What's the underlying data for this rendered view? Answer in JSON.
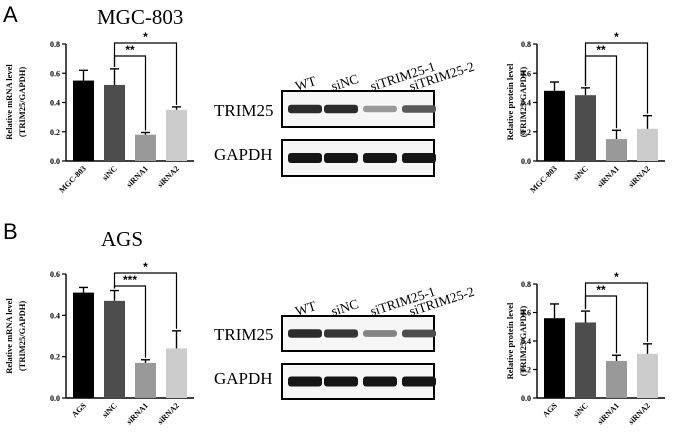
{
  "panels": [
    {
      "letter": "A",
      "cell_line": "MGC-803"
    },
    {
      "letter": "B",
      "cell_line": "AGS"
    }
  ],
  "blots": [
    {
      "lanes": [
        "WT",
        "siNC",
        "siTRIM25-1",
        "siTRIM25-2"
      ],
      "rows": [
        "TRIM25",
        "GAPDH"
      ],
      "trim25_intensity": [
        0.85,
        0.85,
        0.35,
        0.65
      ]
    },
    {
      "lanes": [
        "WT",
        "siNC",
        "siTRIM25-1",
        "siTRIM25-2"
      ],
      "rows": [
        "TRIM25",
        "GAPDH"
      ],
      "trim25_intensity": [
        0.85,
        0.8,
        0.45,
        0.7
      ]
    }
  ],
  "chart_data": [
    {
      "type": "bar",
      "panel": "A",
      "ylabel_lines": [
        "Relative mRNA level",
        "(TRIM25/GAPDH)"
      ],
      "categories": [
        "MGC-803",
        "siNC",
        "siRNA1",
        "siRNA2"
      ],
      "values": [
        0.55,
        0.52,
        0.18,
        0.35
      ],
      "errors": [
        0.07,
        0.11,
        0.015,
        0.02
      ],
      "colors": [
        "#000000",
        "#4d4d4d",
        "#999999",
        "#cccccc"
      ],
      "ylim": [
        0,
        0.8
      ],
      "yticks": [
        "0.0",
        "0.2",
        "0.4",
        "0.6",
        "0.8"
      ],
      "significance": [
        {
          "from": 1,
          "to": 2,
          "label": "**"
        },
        {
          "from": 1,
          "to": 3,
          "label": "*"
        }
      ]
    },
    {
      "type": "bar",
      "panel": "A",
      "ylabel_lines": [
        "Relative protein level",
        "(TRIM25/GAPDH)"
      ],
      "categories": [
        "MGC-803",
        "siNC",
        "siRNA1",
        "siRNA2"
      ],
      "values": [
        0.48,
        0.45,
        0.15,
        0.22
      ],
      "errors": [
        0.06,
        0.05,
        0.06,
        0.09
      ],
      "colors": [
        "#000000",
        "#4d4d4d",
        "#999999",
        "#cccccc"
      ],
      "ylim": [
        0,
        0.8
      ],
      "yticks": [
        "0.0",
        "0.2",
        "0.4",
        "0.6",
        "0.8"
      ],
      "significance": [
        {
          "from": 1,
          "to": 2,
          "label": "**"
        },
        {
          "from": 1,
          "to": 3,
          "label": "*"
        }
      ]
    },
    {
      "type": "bar",
      "panel": "B",
      "ylabel_lines": [
        "Relative mRNA level",
        "(TRIM25/GAPDH)"
      ],
      "categories": [
        "AGS",
        "siNC",
        "siRNA1",
        "siRNA2"
      ],
      "values": [
        0.51,
        0.47,
        0.17,
        0.24
      ],
      "errors": [
        0.025,
        0.05,
        0.015,
        0.085
      ],
      "colors": [
        "#000000",
        "#4d4d4d",
        "#999999",
        "#cccccc"
      ],
      "ylim": [
        0,
        0.6
      ],
      "yticks": [
        "0.0",
        "0.2",
        "0.4",
        "0.6"
      ],
      "significance": [
        {
          "from": 1,
          "to": 2,
          "label": "***"
        },
        {
          "from": 1,
          "to": 3,
          "label": "*"
        }
      ]
    },
    {
      "type": "bar",
      "panel": "B",
      "ylabel_lines": [
        "Relative protein level",
        "(TRIM25/GAPDH)"
      ],
      "categories": [
        "AGS",
        "siNC",
        "siRNA1",
        "siRNA2"
      ],
      "values": [
        0.56,
        0.53,
        0.26,
        0.31
      ],
      "errors": [
        0.1,
        0.08,
        0.04,
        0.07
      ],
      "colors": [
        "#000000",
        "#4d4d4d",
        "#999999",
        "#cccccc"
      ],
      "ylim": [
        0,
        0.8
      ],
      "yticks": [
        "0.0",
        "0.2",
        "0.4",
        "0.6",
        "0.8"
      ],
      "significance": [
        {
          "from": 1,
          "to": 2,
          "label": "**"
        },
        {
          "from": 1,
          "to": 3,
          "label": "*"
        }
      ]
    }
  ]
}
